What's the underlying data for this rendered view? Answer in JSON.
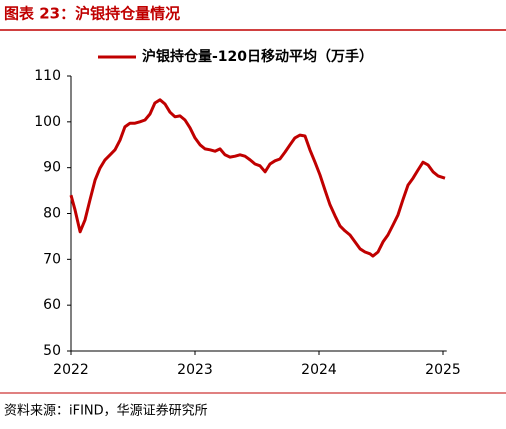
{
  "chart_data": {
    "type": "line",
    "title": "图表 23：沪银持仓量情况",
    "source": "资料来源：iFIND，华源证券研究所",
    "x": [
      2022.0,
      2022.032,
      2022.073,
      2022.113,
      2022.153,
      2022.194,
      2022.234,
      2022.274,
      2022.315,
      2022.355,
      2022.395,
      2022.435,
      2022.476,
      2022.516,
      2022.556,
      2022.597,
      2022.637,
      2022.677,
      2022.718,
      2022.758,
      2022.798,
      2022.839,
      2022.879,
      2022.919,
      2022.96,
      2023.0,
      2023.04,
      2023.081,
      2023.121,
      2023.161,
      2023.202,
      2023.242,
      2023.282,
      2023.323,
      2023.363,
      2023.403,
      2023.444,
      2023.484,
      2023.524,
      2023.565,
      2023.605,
      2023.645,
      2023.685,
      2023.726,
      2023.766,
      2023.806,
      2023.847,
      2023.887,
      2023.927,
      2023.968,
      2024.008,
      2024.048,
      2024.089,
      2024.129,
      2024.169,
      2024.21,
      2024.25,
      2024.29,
      2024.331,
      2024.371,
      2024.411,
      2024.435,
      2024.476,
      2024.516,
      2024.556,
      2024.597,
      2024.637,
      2024.677,
      2024.718,
      2024.758,
      2024.798,
      2024.839,
      2024.879,
      2024.919,
      2024.96,
      2025.016
    ],
    "series": [
      {
        "name": "沪银持仓量-120日移动平均（万手）",
        "color": "#c00000",
        "values": [
          84.0,
          80.8,
          76.0,
          78.6,
          83.0,
          87.3,
          89.9,
          91.7,
          92.8,
          93.9,
          96.0,
          98.9,
          99.7,
          99.7,
          100.0,
          100.4,
          101.7,
          104.1,
          104.8,
          103.9,
          102.1,
          101.1,
          101.3,
          100.4,
          98.7,
          96.5,
          95.0,
          94.1,
          93.9,
          93.6,
          94.1,
          92.8,
          92.3,
          92.5,
          92.8,
          92.5,
          91.7,
          90.8,
          90.4,
          89.1,
          90.8,
          91.5,
          91.9,
          93.4,
          95.0,
          96.5,
          97.1,
          96.9,
          93.9,
          91.2,
          88.4,
          85.1,
          81.9,
          79.5,
          77.3,
          76.2,
          75.3,
          73.8,
          72.3,
          71.6,
          71.2,
          70.7,
          71.6,
          73.8,
          75.3,
          77.5,
          79.7,
          83.0,
          86.2,
          87.7,
          89.5,
          91.2,
          90.6,
          89.1,
          88.2,
          87.7
        ]
      }
    ],
    "xlim": [
      2022,
      2025.03
    ],
    "xticks": [
      2022,
      2023,
      2024,
      2025
    ],
    "ylim": [
      50,
      110
    ],
    "yticks": [
      50,
      60,
      70,
      80,
      90,
      100,
      110
    ],
    "legend": "top"
  }
}
